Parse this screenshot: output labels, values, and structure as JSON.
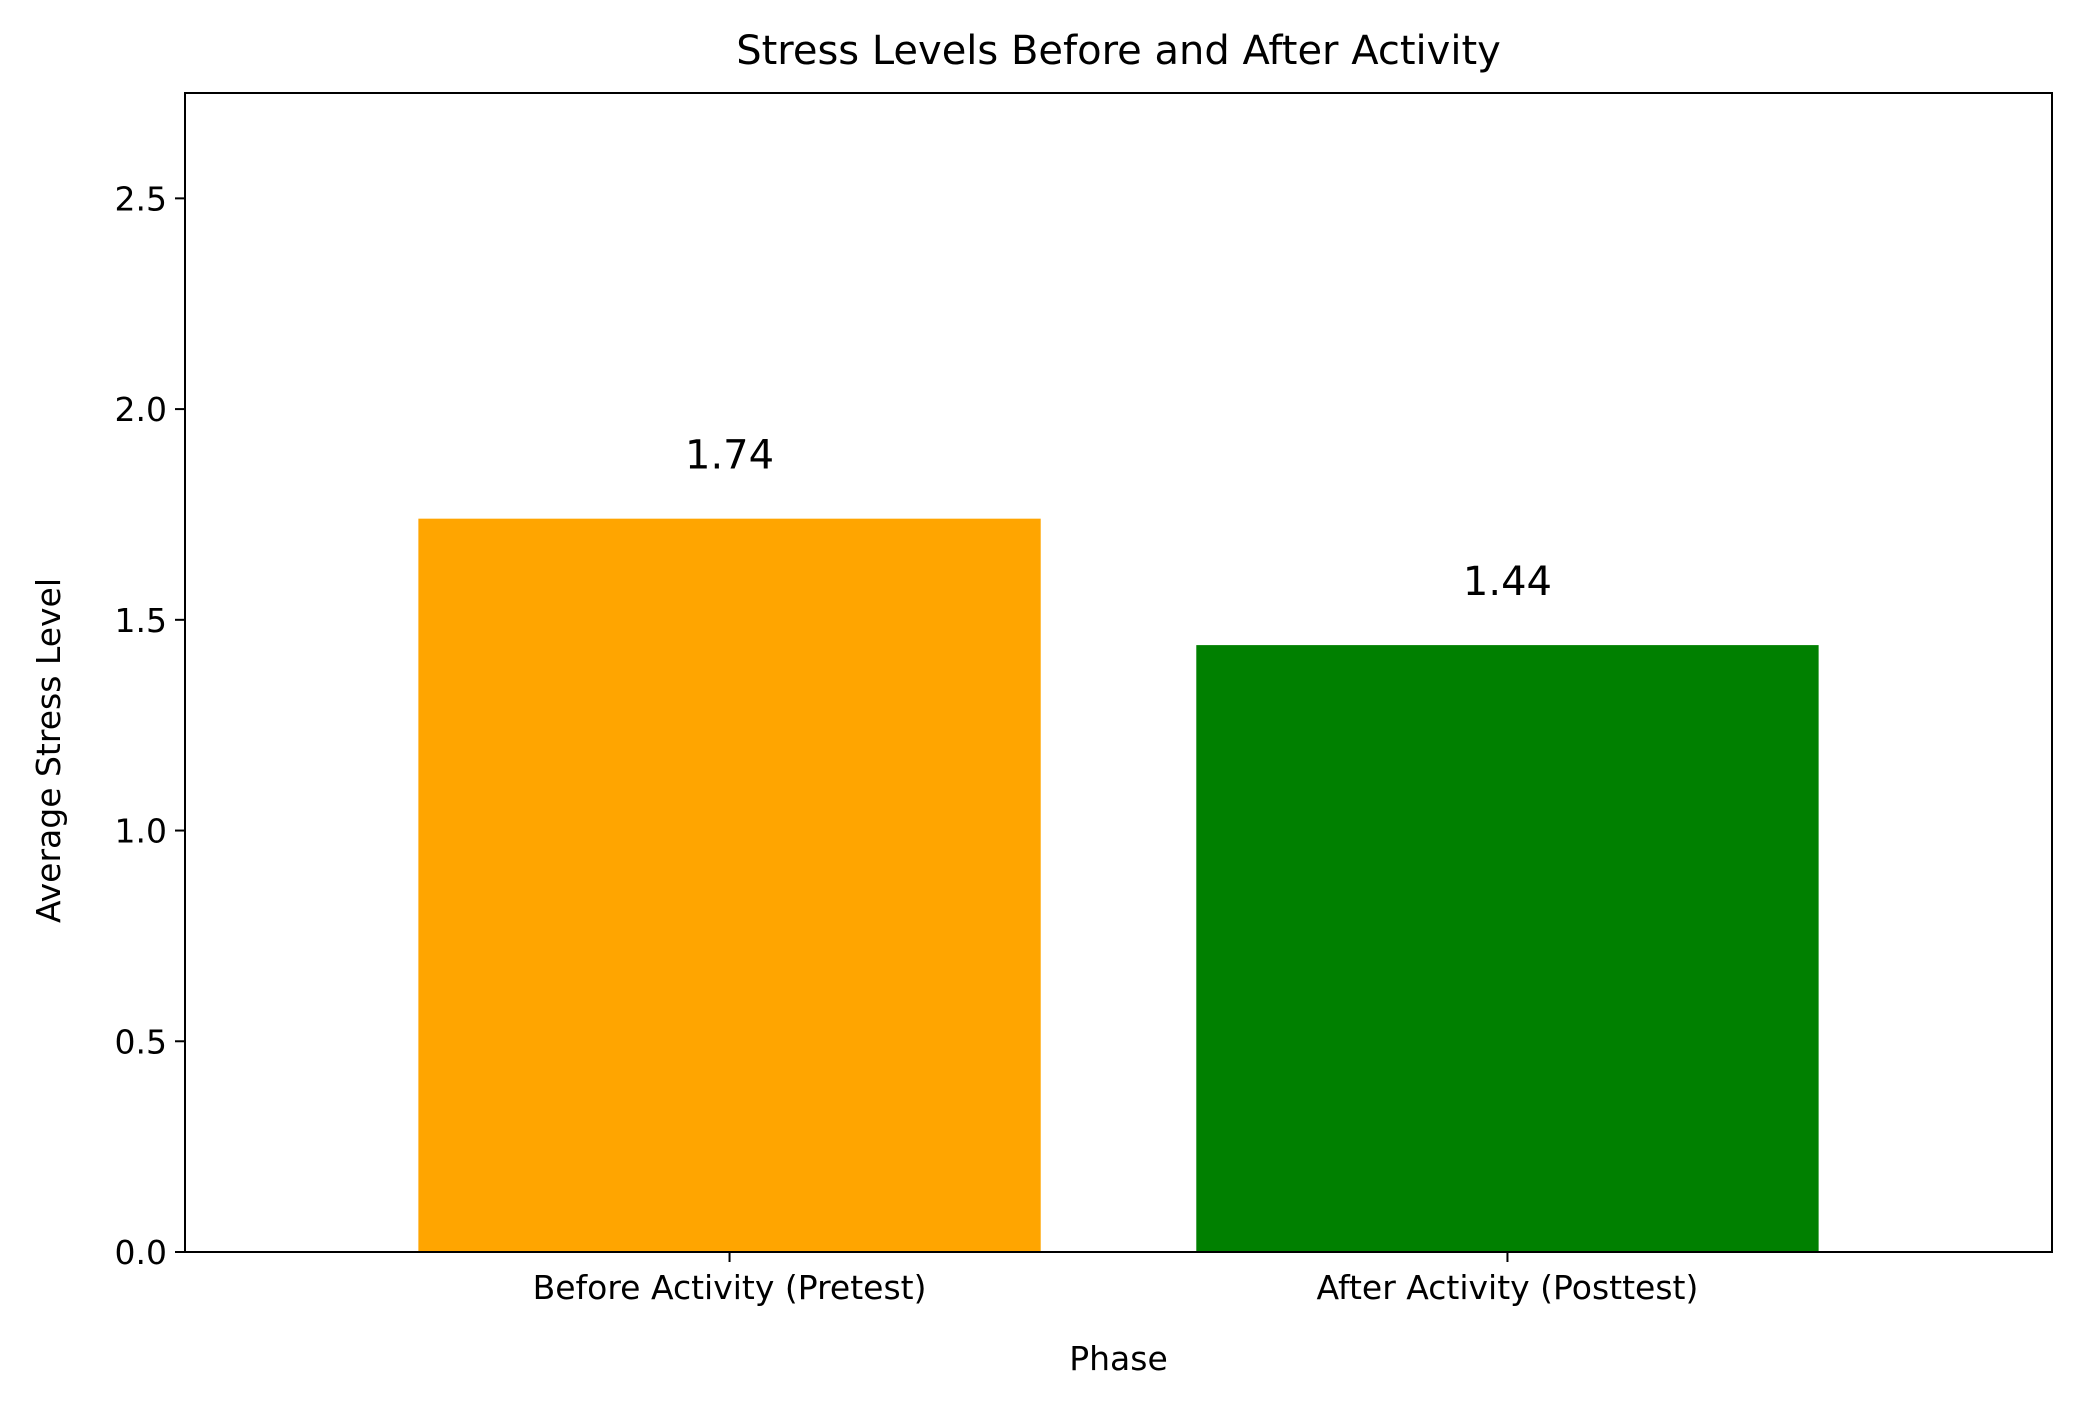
{
  "chart_data": {
    "type": "bar",
    "title": "Stress Levels Before and After Activity",
    "xlabel": "Phase",
    "ylabel": "Average Stress Level",
    "categories": [
      "Before Activity (Pretest)",
      "After Activity (Posttest)"
    ],
    "values": [
      1.74,
      1.44
    ],
    "value_labels": [
      "1.74",
      "1.44"
    ],
    "colors": [
      "#FFA500",
      "#008000"
    ],
    "ylim": [
      0,
      2.75
    ],
    "yticks": [
      0.0,
      0.5,
      1.0,
      1.5,
      2.0,
      2.5
    ],
    "ytick_labels": [
      "0.0",
      "0.5",
      "1.0",
      "1.5",
      "2.0",
      "2.5"
    ],
    "grid": false,
    "legend": "none"
  }
}
